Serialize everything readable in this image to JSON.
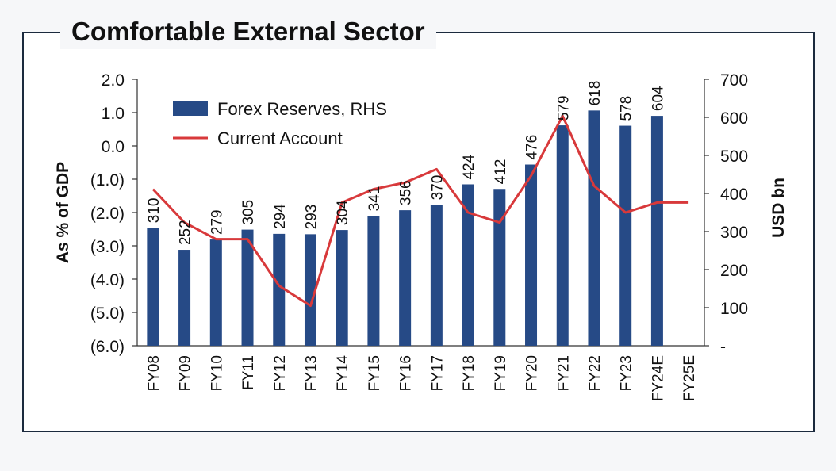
{
  "title": "Comfortable External Sector",
  "chart_data": {
    "type": "bar+line",
    "categories": [
      "FY08",
      "FY09",
      "FY10",
      "FY11",
      "FY12",
      "FY13",
      "FY14",
      "FY15",
      "FY16",
      "FY17",
      "FY18",
      "FY19",
      "FY20",
      "FY21",
      "FY22",
      "FY23",
      "FY24E",
      "FY25E"
    ],
    "series": [
      {
        "name": "Forex Reserves, RHS",
        "type": "bar",
        "axis": "right",
        "values": [
          310,
          252,
          279,
          305,
          294,
          293,
          304,
          341,
          356,
          370,
          424,
          412,
          476,
          579,
          618,
          578,
          604,
          null
        ],
        "labels": [
          "310",
          "252",
          "279",
          "305",
          "294",
          "293",
          "304",
          "341",
          "356",
          "370",
          "424",
          "412",
          "476",
          "579",
          "618",
          "578",
          "604",
          ""
        ],
        "color": "#264a86"
      },
      {
        "name": "Current Account",
        "type": "line",
        "axis": "left",
        "values": [
          -1.3,
          -2.3,
          -2.8,
          -2.8,
          -4.2,
          -4.8,
          -1.7,
          -1.3,
          -1.1,
          -0.7,
          -2.0,
          -2.3,
          -0.9,
          0.9,
          -1.2,
          -2.0,
          -1.7,
          -1.7
        ],
        "color": "#d8393b"
      }
    ],
    "y_left": {
      "label": "As % of GDP",
      "range": [
        -6,
        2
      ],
      "ticks": [
        "2.0",
        "1.0",
        "0.0",
        "(1.0)",
        "(2.0)",
        "(3.0)",
        "(4.0)",
        "(5.0)",
        "(6.0)"
      ]
    },
    "y_right": {
      "label": "USD bn",
      "range": [
        0,
        700
      ],
      "ticks": [
        "700",
        "600",
        "500",
        "400",
        "300",
        "200",
        "100",
        "-"
      ]
    },
    "legend": "top-left",
    "grid": false
  }
}
